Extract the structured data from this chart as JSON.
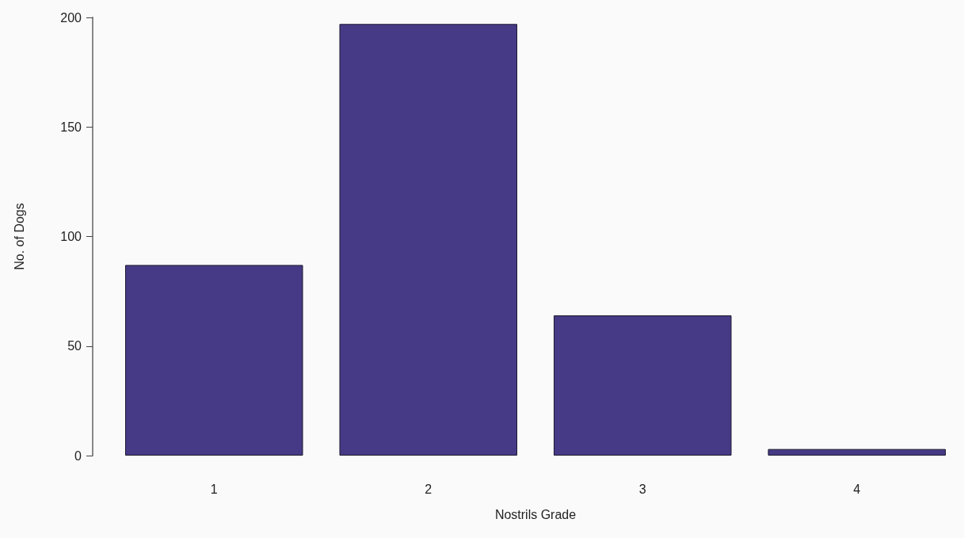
{
  "chart_data": {
    "type": "bar",
    "xlabel": "Nostrils Grade",
    "ylabel": "No. of Dogs",
    "categories": [
      "1",
      "2",
      "3",
      "4"
    ],
    "values": [
      87,
      197,
      64,
      3
    ],
    "color": "#463a86",
    "ylim": [
      0,
      200
    ],
    "yticks": [
      0,
      50,
      100,
      150,
      200
    ]
  }
}
